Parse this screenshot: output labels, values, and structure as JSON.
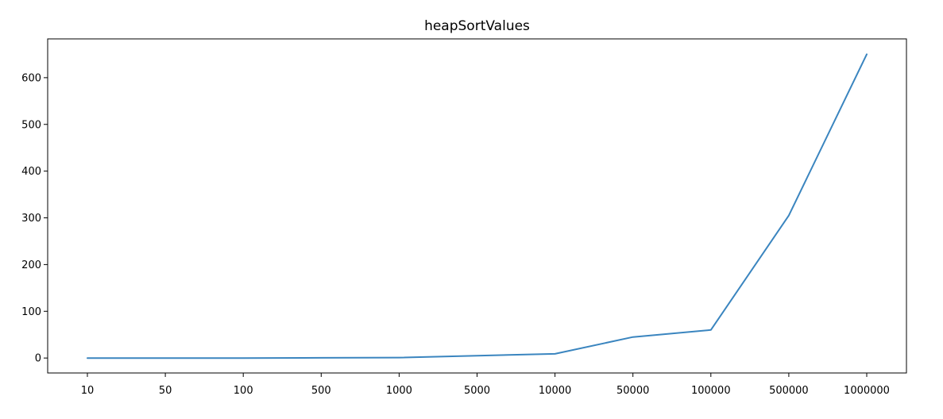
{
  "chart_data": {
    "type": "line",
    "title": "heapSortValues",
    "xlabel": "",
    "ylabel": "",
    "categories": [
      "10",
      "50",
      "100",
      "500",
      "1000",
      "5000",
      "10000",
      "50000",
      "100000",
      "500000",
      "1000000"
    ],
    "series": [
      {
        "values": [
          0,
          0,
          0,
          0.5,
          1,
          5,
          9,
          45,
          60,
          305,
          650
        ],
        "color": "#3a85bf"
      }
    ],
    "ylim": [
      -32,
      683
    ],
    "yticks": [
      0,
      100,
      200,
      300,
      400,
      500,
      600
    ],
    "grid": false,
    "legend": "none"
  }
}
